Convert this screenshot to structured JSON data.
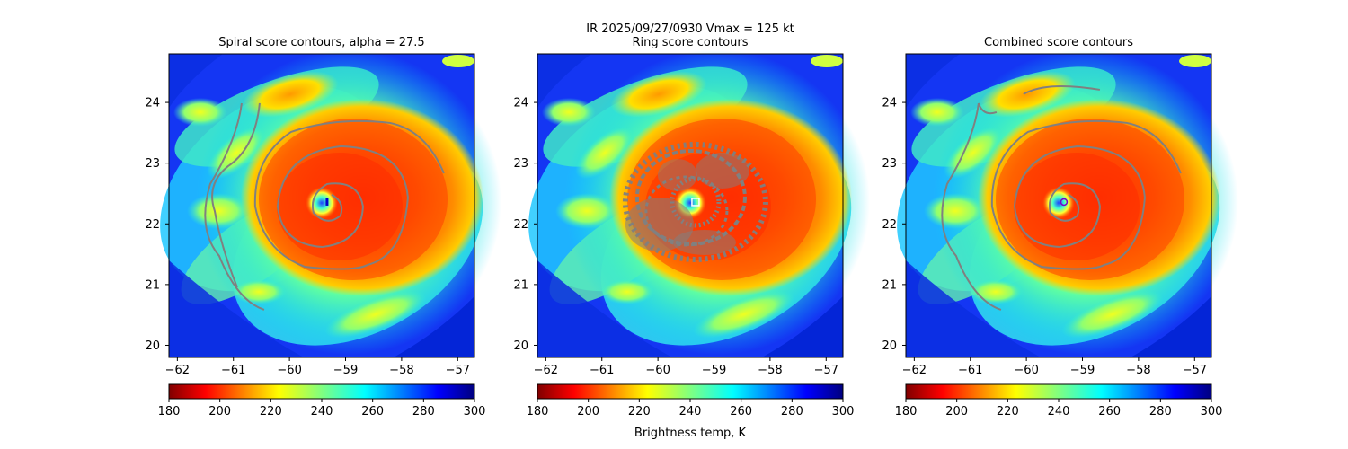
{
  "suptitle_line1": "IR  2025/09/27/0930    Vmax = 125 kt",
  "colorbar_label": "Brightness temp, K",
  "colors": {
    "contour": "#808080",
    "background": "#ffffff"
  },
  "colorbar": {
    "colormap": "jet_r",
    "range": [
      180,
      300
    ],
    "ticks": [
      "180",
      "200",
      "220",
      "240",
      "260",
      "280",
      "300"
    ]
  },
  "chart_data": [
    {
      "type": "heatmap",
      "title": "Spiral score contours, alpha = 27.5",
      "xlim": [
        -62.15,
        -56.7
      ],
      "ylim": [
        19.8,
        24.8
      ],
      "xticks": [
        "−62",
        "−61",
        "−60",
        "−59",
        "−58",
        "−57"
      ],
      "yticks": [
        "20",
        "21",
        "22",
        "23",
        "24"
      ],
      "storm_center": [
        -59.33,
        22.36
      ],
      "center_marker": "blue-dot",
      "contour_style": "spiral"
    },
    {
      "type": "heatmap",
      "title": "Ring score contours",
      "xlim": [
        -62.15,
        -56.7
      ],
      "ylim": [
        19.8,
        24.8
      ],
      "xticks": [
        "−62",
        "−61",
        "−60",
        "−59",
        "−58",
        "−57"
      ],
      "yticks": [
        "20",
        "21",
        "22",
        "23",
        "24"
      ],
      "storm_center": [
        -59.33,
        22.36
      ],
      "center_marker": "white-square",
      "contour_style": "ring"
    },
    {
      "type": "heatmap",
      "title": "Combined score contours",
      "xlim": [
        -62.15,
        -56.7
      ],
      "ylim": [
        19.8,
        24.8
      ],
      "xticks": [
        "−62",
        "−61",
        "−60",
        "−59",
        "−58",
        "−57"
      ],
      "yticks": [
        "20",
        "21",
        "22",
        "23",
        "24"
      ],
      "storm_center": [
        -59.33,
        22.36
      ],
      "center_marker": "purple-ring",
      "contour_style": "combined"
    }
  ]
}
